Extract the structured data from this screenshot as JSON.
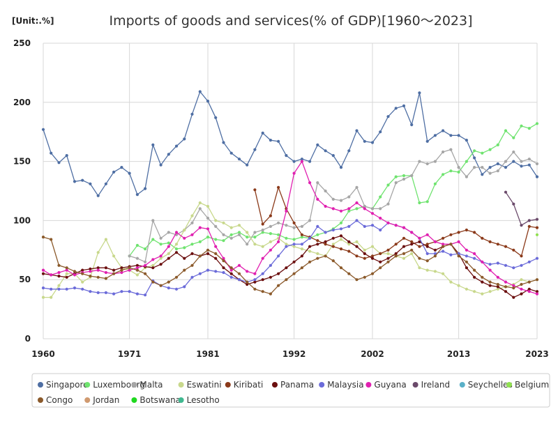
{
  "chart_data": {
    "type": "line",
    "title": "Imports of goods and services(% of GDP)[1960～2023]",
    "unit_label": "[Unit:.%]",
    "ylim": [
      0,
      250
    ],
    "y_ticks": [
      0,
      50,
      100,
      150,
      200,
      250
    ],
    "x_range": [
      1960,
      2023
    ],
    "x_ticks": [
      1960,
      1971,
      1981,
      1992,
      2002,
      2013,
      2023
    ],
    "grid": true,
    "legend_position": "bottom",
    "series": [
      {
        "name": "Singapore",
        "color": "#4e6ea3",
        "start": 1960,
        "values": [
          177,
          157,
          149,
          155,
          133,
          134,
          131,
          121,
          131,
          141,
          145,
          140,
          122,
          127,
          164,
          147,
          156,
          163,
          169,
          190,
          209,
          201,
          187,
          166,
          157,
          152,
          147,
          160,
          174,
          168,
          167,
          155,
          150,
          152,
          150,
          164,
          159,
          155,
          145,
          159,
          176,
          167,
          166,
          175,
          188,
          195,
          197,
          181,
          208,
          167,
          172,
          176,
          172,
          172,
          168,
          153,
          139,
          145,
          148,
          145,
          150,
          146,
          147,
          137
        ]
      },
      {
        "name": "Luxembourg",
        "color": "#6fe36f",
        "start": 1960,
        "values": [
          null,
          null,
          null,
          null,
          null,
          null,
          null,
          null,
          null,
          null,
          null,
          70,
          79,
          76,
          84,
          80,
          81,
          76,
          77,
          80,
          82,
          86,
          84,
          83,
          88,
          90,
          86,
          86,
          90,
          89,
          88,
          85,
          84,
          86,
          85,
          88,
          90,
          93,
          98,
          108,
          110,
          112,
          110,
          120,
          130,
          137,
          138,
          138,
          115,
          116,
          131,
          139,
          142,
          141,
          150,
          159,
          157,
          160,
          164,
          176,
          170,
          180,
          178,
          182
        ]
      },
      {
        "name": "Malta",
        "color": "#a6a6a6",
        "start": 1960,
        "values": [
          null,
          null,
          null,
          null,
          null,
          null,
          null,
          null,
          null,
          null,
          null,
          70,
          68,
          65,
          100,
          85,
          90,
          88,
          92,
          98,
          110,
          102,
          95,
          88,
          85,
          88,
          80,
          90,
          92,
          95,
          98,
          96,
          94,
          95,
          100,
          132,
          125,
          118,
          117,
          120,
          128,
          112,
          110,
          110,
          114,
          132,
          135,
          138,
          150,
          148,
          150,
          158,
          160,
          145,
          137,
          145,
          145,
          140,
          142,
          150,
          158,
          150,
          152,
          148
        ]
      },
      {
        "name": "Eswatini",
        "color": "#c8d88c",
        "start": 1960,
        "values": [
          35,
          35,
          45,
          55,
          55,
          48,
          52,
          73,
          84,
          70,
          60,
          58,
          54,
          60,
          62,
          68,
          72,
          80,
          92,
          104,
          115,
          112,
          100,
          98,
          94,
          96,
          90,
          80,
          78,
          82,
          85,
          80,
          78,
          76,
          74,
          72,
          70,
          80,
          84,
          80,
          82,
          75,
          78,
          72,
          72,
          70,
          68,
          72,
          60,
          58,
          57,
          55,
          48,
          45,
          42,
          40,
          38,
          40,
          42,
          44,
          46,
          50,
          48,
          50
        ]
      },
      {
        "name": "Kiribati",
        "color": "#8b3a1a",
        "start": 1960,
        "values": [
          null,
          null,
          null,
          null,
          null,
          null,
          null,
          null,
          null,
          null,
          null,
          null,
          null,
          null,
          null,
          null,
          null,
          null,
          null,
          null,
          null,
          null,
          null,
          null,
          null,
          null,
          null,
          126,
          97,
          104,
          128,
          110,
          98,
          88,
          86,
          83,
          80,
          78,
          76,
          74,
          70,
          68,
          70,
          72,
          75,
          80,
          85,
          82,
          78,
          80,
          82,
          85,
          88,
          90,
          92,
          90,
          85,
          82,
          80,
          78,
          75,
          70,
          95,
          94
        ]
      },
      {
        "name": "Panama",
        "color": "#6b0f0f",
        "start": 1960,
        "values": [
          55,
          54,
          53,
          52,
          55,
          58,
          59,
          60,
          60,
          58,
          60,
          61,
          62,
          61,
          60,
          63,
          68,
          73,
          68,
          72,
          70,
          72,
          68,
          60,
          55,
          50,
          46,
          48,
          50,
          52,
          55,
          60,
          65,
          70,
          78,
          80,
          82,
          85,
          87,
          82,
          78,
          72,
          68,
          65,
          68,
          72,
          78,
          80,
          82,
          78,
          75,
          78,
          80,
          72,
          60,
          52,
          48,
          45,
          44,
          40,
          35,
          38,
          42,
          40
        ]
      },
      {
        "name": "Malaysia",
        "color": "#6b6bd9",
        "start": 1960,
        "values": [
          43,
          42,
          42,
          42,
          43,
          42,
          40,
          39,
          39,
          38,
          40,
          40,
          38,
          37,
          49,
          45,
          43,
          42,
          44,
          52,
          55,
          58,
          57,
          56,
          52,
          50,
          48,
          50,
          55,
          62,
          70,
          78,
          80,
          80,
          85,
          95,
          90,
          92,
          93,
          95,
          100,
          95,
          96,
          92,
          98,
          96,
          94,
          90,
          85,
          72,
          72,
          74,
          71,
          72,
          70,
          68,
          65,
          63,
          64,
          62,
          60,
          62,
          65,
          68
        ]
      },
      {
        "name": "Guyana",
        "color": "#e020b0",
        "start": 1960,
        "values": [
          58,
          54,
          56,
          58,
          54,
          56,
          57,
          58,
          56,
          55,
          56,
          58,
          60,
          62,
          67,
          70,
          78,
          90,
          85,
          88,
          94,
          93,
          78,
          68,
          58,
          62,
          57,
          55,
          68,
          75,
          82,
          108,
          140,
          150,
          132,
          118,
          112,
          110,
          108,
          110,
          115,
          110,
          106,
          102,
          98,
          96,
          94,
          90,
          85,
          88,
          82,
          80,
          80,
          82,
          75,
          72,
          65,
          58,
          52,
          48,
          45,
          42,
          40,
          38
        ]
      },
      {
        "name": "Ireland",
        "color": "#6b4a6b",
        "start": 1960,
        "values": [
          null,
          null,
          null,
          null,
          null,
          null,
          null,
          null,
          null,
          null,
          null,
          null,
          null,
          null,
          null,
          null,
          null,
          null,
          null,
          null,
          null,
          null,
          null,
          null,
          null,
          null,
          null,
          null,
          null,
          null,
          null,
          null,
          null,
          null,
          null,
          null,
          null,
          null,
          null,
          null,
          null,
          null,
          null,
          null,
          null,
          null,
          null,
          null,
          null,
          null,
          null,
          null,
          null,
          null,
          null,
          null,
          null,
          null,
          null,
          124,
          114,
          96,
          100,
          101
        ]
      },
      {
        "name": "Seychelles",
        "color": "#5ab0c8",
        "start": 1960,
        "values": [
          null,
          null,
          null,
          null,
          null,
          null,
          null,
          null,
          null,
          null,
          null,
          null,
          null,
          null,
          null,
          null,
          null,
          null,
          null,
          null,
          null,
          null,
          null,
          null,
          null,
          null,
          null,
          null,
          null,
          null,
          null,
          null,
          null,
          null,
          null,
          null,
          null,
          null,
          null,
          null,
          null,
          null,
          null,
          null,
          null,
          null,
          null,
          null,
          null,
          null,
          null,
          null,
          null,
          null,
          null,
          null,
          null,
          null,
          null,
          null,
          null,
          null,
          null,
          null
        ]
      },
      {
        "name": "Belgium",
        "color": "#90e050",
        "start": 1960,
        "values": [
          null,
          null,
          null,
          null,
          null,
          null,
          null,
          null,
          null,
          null,
          null,
          null,
          null,
          null,
          null,
          null,
          null,
          null,
          null,
          null,
          null,
          null,
          null,
          null,
          null,
          null,
          null,
          null,
          null,
          null,
          null,
          null,
          null,
          null,
          null,
          null,
          null,
          null,
          null,
          null,
          null,
          null,
          null,
          null,
          null,
          null,
          null,
          null,
          null,
          null,
          null,
          null,
          null,
          null,
          null,
          null,
          null,
          null,
          null,
          null,
          null,
          null,
          null,
          88
        ]
      },
      {
        "name": "Congo",
        "color": "#8b5a2b",
        "start": 1960,
        "values": [
          86,
          84,
          62,
          60,
          57,
          55,
          53,
          52,
          51,
          55,
          58,
          60,
          58,
          55,
          48,
          45,
          48,
          52,
          58,
          62,
          70,
          75,
          72,
          66,
          60,
          55,
          48,
          42,
          40,
          38,
          45,
          50,
          55,
          60,
          65,
          68,
          70,
          66,
          60,
          55,
          50,
          52,
          55,
          60,
          65,
          70,
          72,
          75,
          68,
          66,
          70,
          78,
          80,
          70,
          65,
          58,
          52,
          48,
          46,
          44,
          43,
          46,
          48,
          50
        ]
      },
      {
        "name": "Jordan",
        "color": "#d09a70",
        "start": 1960,
        "values": [
          null,
          null,
          null,
          null,
          null,
          null,
          null,
          null,
          null,
          null,
          null,
          null,
          null,
          null,
          null,
          null,
          null,
          null,
          null,
          null,
          null,
          null,
          null,
          null,
          null,
          null,
          null,
          null,
          null,
          null,
          null,
          null,
          null,
          null,
          null,
          null,
          null,
          null,
          null,
          null,
          null,
          null,
          null,
          null,
          null,
          null,
          null,
          null,
          null,
          null,
          null,
          null,
          null,
          null,
          null,
          null,
          null,
          null,
          null,
          null,
          null,
          null,
          null,
          null
        ]
      },
      {
        "name": "Botswana",
        "color": "#20d820",
        "start": 1960,
        "values": [
          null,
          null,
          null,
          null,
          null,
          null,
          null,
          null,
          null,
          null,
          null,
          null,
          null,
          null,
          null,
          null,
          null,
          null,
          null,
          null,
          null,
          null,
          null,
          null,
          null,
          null,
          null,
          null,
          null,
          null,
          null,
          null,
          null,
          null,
          null,
          null,
          null,
          null,
          null,
          null,
          null,
          null,
          null,
          null,
          null,
          null,
          null,
          null,
          null,
          null,
          null,
          null,
          null,
          null,
          null,
          null,
          null,
          null,
          null,
          null,
          null,
          null,
          null,
          null
        ]
      },
      {
        "name": "Lesotho",
        "color": "#40b890",
        "start": 1960,
        "values": [
          null,
          null,
          null,
          null,
          null,
          null,
          null,
          null,
          null,
          null,
          null,
          null,
          null,
          null,
          null,
          null,
          null,
          null,
          null,
          null,
          null,
          null,
          null,
          null,
          null,
          null,
          null,
          null,
          null,
          null,
          null,
          null,
          null,
          null,
          null,
          null,
          null,
          null,
          null,
          null,
          null,
          null,
          null,
          null,
          null,
          null,
          null,
          null,
          null,
          null,
          null,
          null,
          null,
          null,
          null,
          null,
          null,
          null,
          null,
          null,
          null,
          null,
          null,
          null
        ]
      }
    ]
  }
}
